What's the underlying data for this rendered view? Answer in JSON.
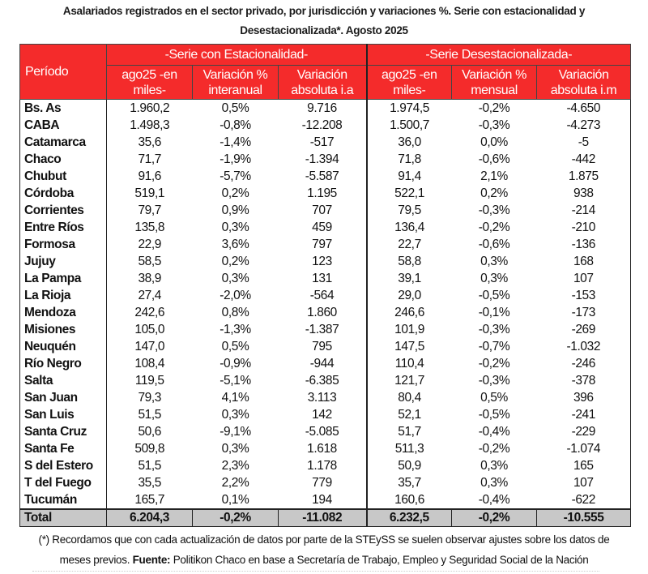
{
  "title": {
    "line1": "Asalariados registrados en el sector privado, por jurisdicción y variaciones %. Serie con estacionalidad y",
    "line2": "Desestacionalizada*. Agosto 2025"
  },
  "colors": {
    "header_bg": "#f42b2b",
    "total_bg": "#c8c8c8"
  },
  "table": {
    "period_header": "Período",
    "group_headers": [
      "-Serie con Estacionalidad-",
      "-Serie Desestacionalizada-"
    ],
    "columns": [
      [
        "ago25 -en",
        "miles-"
      ],
      [
        "Variación %",
        "interanual"
      ],
      [
        "Variación",
        "absoluta i.a"
      ],
      [
        "ago25 -en",
        "miles-"
      ],
      [
        "Variación %",
        "mensual"
      ],
      [
        "Variación",
        "absoluta i.m"
      ]
    ],
    "rows": [
      [
        "Bs. As",
        "1.960,2",
        "0,5%",
        "9.716",
        "1.974,5",
        "-0,2%",
        "-4.650"
      ],
      [
        "CABA",
        "1.498,3",
        "-0,8%",
        "-12.208",
        "1.500,7",
        "-0,3%",
        "-4.273"
      ],
      [
        "Catamarca",
        "35,6",
        "-1,4%",
        "-517",
        "36,0",
        "0,0%",
        "-5"
      ],
      [
        "Chaco",
        "71,7",
        "-1,9%",
        "-1.394",
        "71,8",
        "-0,6%",
        "-442"
      ],
      [
        "Chubut",
        "91,6",
        "-5,7%",
        "-5.587",
        "91,4",
        "2,1%",
        "1.875"
      ],
      [
        "Córdoba",
        "519,1",
        "0,2%",
        "1.195",
        "522,1",
        "0,2%",
        "938"
      ],
      [
        "Corrientes",
        "79,7",
        "0,9%",
        "707",
        "79,5",
        "-0,3%",
        "-214"
      ],
      [
        "Entre Ríos",
        "135,8",
        "0,3%",
        "459",
        "136,4",
        "-0,2%",
        "-210"
      ],
      [
        "Formosa",
        "22,9",
        "3,6%",
        "797",
        "22,7",
        "-0,6%",
        "-136"
      ],
      [
        "Jujuy",
        "58,5",
        "0,2%",
        "123",
        "58,8",
        "0,3%",
        "168"
      ],
      [
        "La Pampa",
        "38,9",
        "0,3%",
        "131",
        "39,1",
        "0,3%",
        "107"
      ],
      [
        "La Rioja",
        "27,4",
        "-2,0%",
        "-564",
        "29,0",
        "-0,5%",
        "-153"
      ],
      [
        "Mendoza",
        "242,6",
        "0,8%",
        "1.860",
        "246,6",
        "-0,1%",
        "-173"
      ],
      [
        "Misiones",
        "105,0",
        "-1,3%",
        "-1.387",
        "101,9",
        "-0,3%",
        "-269"
      ],
      [
        "Neuquén",
        "147,0",
        "0,5%",
        "795",
        "147,5",
        "-0,7%",
        "-1.032"
      ],
      [
        "Río Negro",
        "108,4",
        "-0,9%",
        "-944",
        "110,4",
        "-0,2%",
        "-246"
      ],
      [
        "Salta",
        "119,5",
        "-5,1%",
        "-6.385",
        "121,7",
        "-0,3%",
        "-378"
      ],
      [
        "San Juan",
        "79,3",
        "4,1%",
        "3.113",
        "80,4",
        "0,5%",
        "396"
      ],
      [
        "San Luis",
        "51,5",
        "0,3%",
        "142",
        "52,1",
        "-0,5%",
        "-241"
      ],
      [
        "Santa Cruz",
        "50,6",
        "-9,1%",
        "-5.085",
        "51,7",
        "-0,4%",
        "-229"
      ],
      [
        "Santa Fe",
        "509,8",
        "0,3%",
        "1.618",
        "511,3",
        "-0,2%",
        "-1.074"
      ],
      [
        "S del Estero",
        "51,5",
        "2,3%",
        "1.178",
        "50,9",
        "0,3%",
        "165"
      ],
      [
        "T del Fuego",
        "35,5",
        "2,2%",
        "779",
        "35,7",
        "0,3%",
        "107"
      ],
      [
        "Tucumán",
        "165,7",
        "0,1%",
        "194",
        "160,6",
        "-0,4%",
        "-622"
      ]
    ],
    "total": [
      "Total",
      "6.204,3",
      "-0,2%",
      "-11.082",
      "6.232,5",
      "-0,2%",
      "-10.555"
    ]
  },
  "footnote": {
    "line1": "(*) Recordamos que con cada actualización de datos por parte de la STEySS se suelen observar ajustes sobre los datos de",
    "line2_pre": "meses previos. ",
    "source_label": "Fuente:",
    "source_text": " Politikon Chaco en base a Secretaría de Trabajo, Empleo y Seguridad Social de la Nación"
  }
}
